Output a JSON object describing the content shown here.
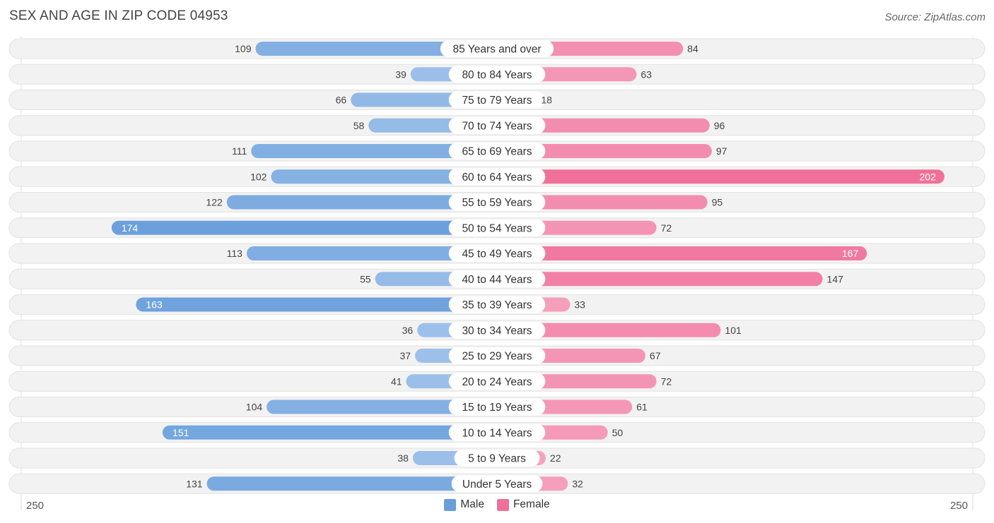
{
  "header": {
    "title": "SEX AND AGE IN ZIP CODE 04953",
    "source": "Source: ZipAtlas.com"
  },
  "colors": {
    "male_light": "#a9c8ec",
    "male_dark": "#6a9fdc",
    "female_light": "#f6a8c2",
    "female_dark": "#f0709a",
    "row_bg": "#f2f2f2"
  },
  "chart_data": {
    "type": "bar",
    "orientation": "horizontal-diverging",
    "title": "SEX AND AGE IN ZIP CODE 04953",
    "categories": [
      "85 Years and over",
      "80 to 84 Years",
      "75 to 79 Years",
      "70 to 74 Years",
      "65 to 69 Years",
      "60 to 64 Years",
      "55 to 59 Years",
      "50 to 54 Years",
      "45 to 49 Years",
      "40 to 44 Years",
      "35 to 39 Years",
      "30 to 34 Years",
      "25 to 29 Years",
      "20 to 24 Years",
      "15 to 19 Years",
      "10 to 14 Years",
      "5 to 9 Years",
      "Under 5 Years"
    ],
    "series": [
      {
        "name": "Male",
        "values": [
          109,
          39,
          66,
          58,
          111,
          102,
          122,
          174,
          113,
          55,
          163,
          36,
          37,
          41,
          104,
          151,
          38,
          131
        ]
      },
      {
        "name": "Female",
        "values": [
          84,
          63,
          18,
          96,
          97,
          202,
          95,
          72,
          167,
          147,
          33,
          101,
          67,
          72,
          61,
          50,
          22,
          32
        ]
      }
    ],
    "axis_max": 250,
    "axis_left_label": "250",
    "axis_right_label": "250",
    "legend": [
      "Male",
      "Female"
    ],
    "legend_position": "bottom-center"
  }
}
